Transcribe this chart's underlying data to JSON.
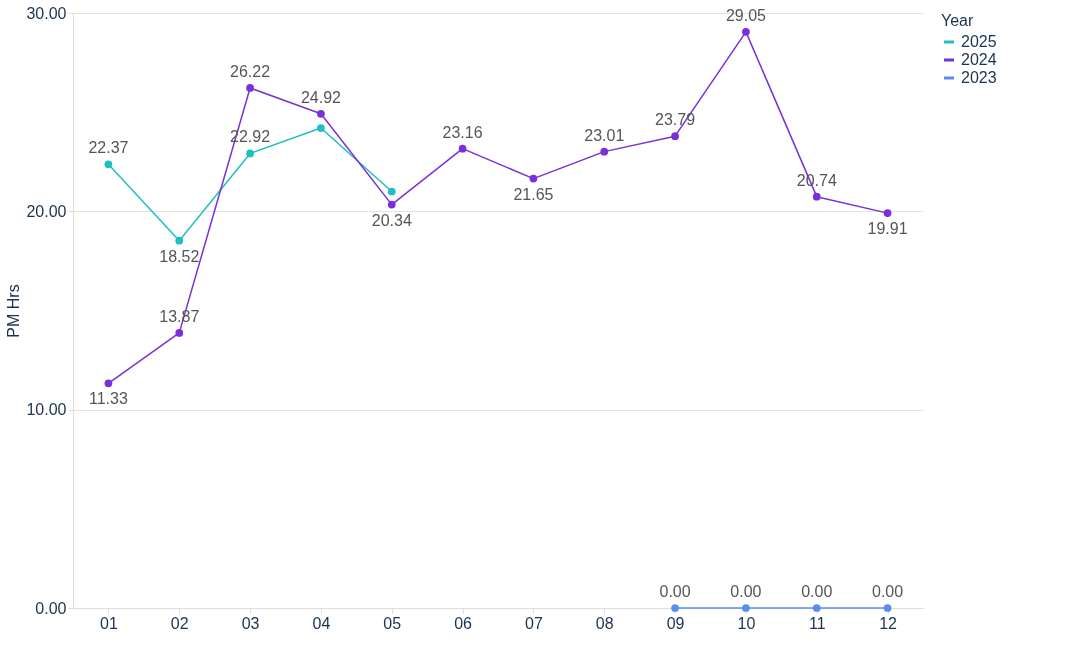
{
  "chart_data": {
    "type": "line",
    "ylabel": "PM Hrs",
    "legend_title": "Year",
    "categories": [
      "01",
      "02",
      "03",
      "04",
      "05",
      "06",
      "07",
      "08",
      "09",
      "10",
      "11",
      "12"
    ],
    "series": [
      {
        "name": "2025",
        "color": "#1fbfbf",
        "values": [
          22.37,
          18.52,
          22.92,
          24.2,
          21.0,
          null,
          null,
          null,
          null,
          null,
          null,
          null
        ],
        "value_labels": [
          "22.37",
          "18.52",
          "22.92",
          null,
          null,
          null,
          null,
          null,
          null,
          null,
          null,
          null
        ]
      },
      {
        "name": "2024",
        "color": "#7a30d8",
        "values": [
          11.33,
          13.87,
          26.22,
          24.92,
          20.34,
          23.16,
          21.65,
          23.01,
          23.79,
          29.05,
          20.74,
          19.91
        ],
        "value_labels": [
          "11.33",
          "13.87",
          "26.22",
          "24.92",
          "20.34",
          "23.16",
          "21.65",
          "23.01",
          "23.79",
          "29.05",
          "20.74",
          "19.91"
        ]
      },
      {
        "name": "2023",
        "color": "#5b8def",
        "values": [
          null,
          null,
          null,
          null,
          null,
          null,
          null,
          null,
          0.0,
          0.0,
          0.0,
          0.0
        ],
        "value_labels": [
          null,
          null,
          null,
          null,
          null,
          null,
          null,
          null,
          "0.00",
          "0.00",
          "0.00",
          "0.00"
        ]
      }
    ],
    "ylim": [
      0,
      30
    ],
    "yticks": [
      {
        "value": 0,
        "label": "0.00"
      },
      {
        "value": 10,
        "label": "10.00"
      },
      {
        "value": 20,
        "label": "20.00"
      },
      {
        "value": 30,
        "label": "30.00"
      }
    ],
    "grid": "y",
    "legend": "top right",
    "marker": "circle",
    "line_style": "solid"
  }
}
